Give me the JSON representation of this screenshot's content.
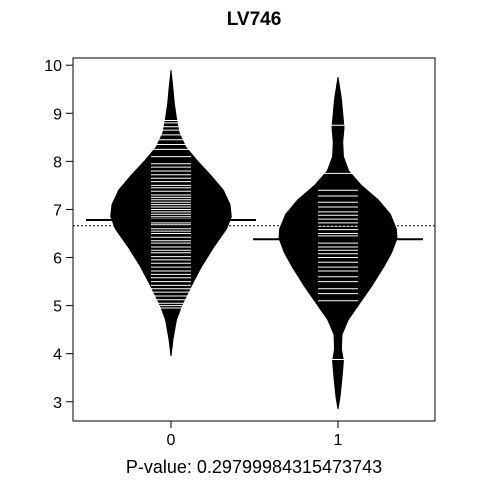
{
  "chart_data": {
    "type": "beanplot",
    "title": "LV746",
    "xlabel": "P-value: 0.29799984315473743",
    "ylabel": "",
    "categories": [
      "0",
      "1"
    ],
    "ylim": [
      2.6,
      10.15
    ],
    "y_ticks": [
      3,
      4,
      5,
      6,
      7,
      8,
      9,
      10
    ],
    "overall_mean": 6.66,
    "group_means": [
      6.78,
      6.38
    ],
    "colors": {
      "bean": "#000000",
      "lines": "#ffffff",
      "mean_line": "#000000"
    },
    "densities": [
      {
        "category": "0",
        "profile": [
          [
            3.95,
            0.0
          ],
          [
            4.3,
            0.03
          ],
          [
            4.7,
            0.08
          ],
          [
            5.0,
            0.16
          ],
          [
            5.4,
            0.3
          ],
          [
            5.8,
            0.45
          ],
          [
            6.2,
            0.63
          ],
          [
            6.6,
            0.83
          ],
          [
            6.85,
            0.9
          ],
          [
            7.1,
            0.88
          ],
          [
            7.4,
            0.78
          ],
          [
            7.7,
            0.6
          ],
          [
            8.0,
            0.4
          ],
          [
            8.3,
            0.22
          ],
          [
            8.6,
            0.12
          ],
          [
            8.9,
            0.08
          ],
          [
            9.2,
            0.05
          ],
          [
            9.5,
            0.03
          ],
          [
            9.9,
            0.0
          ]
        ],
        "observations": [
          4.95,
          5.0,
          5.05,
          5.12,
          5.2,
          5.28,
          5.35,
          5.42,
          5.5,
          5.58,
          5.65,
          5.72,
          5.8,
          5.88,
          5.95,
          6.02,
          6.1,
          6.15,
          6.22,
          6.3,
          6.35,
          6.42,
          6.5,
          6.55,
          6.6,
          6.68,
          6.72,
          6.8,
          6.85,
          6.9,
          6.95,
          7.0,
          7.05,
          7.1,
          7.15,
          7.2,
          7.25,
          7.3,
          7.38,
          7.45,
          7.5,
          7.58,
          7.65,
          7.72,
          7.8,
          7.88,
          7.95,
          8.1,
          8.25,
          8.35,
          8.45,
          8.55,
          8.65,
          8.72,
          8.8,
          8.85
        ]
      },
      {
        "category": "1",
        "profile": [
          [
            2.85,
            0.0
          ],
          [
            3.1,
            0.03
          ],
          [
            3.5,
            0.06
          ],
          [
            3.85,
            0.08
          ],
          [
            4.1,
            0.05
          ],
          [
            4.4,
            0.06
          ],
          [
            4.7,
            0.15
          ],
          [
            5.0,
            0.3
          ],
          [
            5.4,
            0.5
          ],
          [
            5.8,
            0.68
          ],
          [
            6.1,
            0.8
          ],
          [
            6.4,
            0.88
          ],
          [
            6.6,
            0.87
          ],
          [
            6.9,
            0.78
          ],
          [
            7.2,
            0.6
          ],
          [
            7.5,
            0.35
          ],
          [
            7.8,
            0.16
          ],
          [
            8.1,
            0.08
          ],
          [
            8.4,
            0.07
          ],
          [
            8.7,
            0.09
          ],
          [
            9.0,
            0.07
          ],
          [
            9.3,
            0.05
          ],
          [
            9.75,
            0.0
          ]
        ],
        "observations": [
          3.88,
          5.1,
          5.25,
          5.35,
          5.5,
          5.6,
          5.72,
          5.8,
          5.9,
          6.0,
          6.08,
          6.15,
          6.22,
          6.3,
          6.38,
          6.45,
          6.5,
          6.58,
          6.65,
          6.72,
          6.8,
          6.88,
          6.95,
          7.05,
          7.15,
          7.28,
          7.4,
          7.75,
          8.75
        ]
      }
    ]
  }
}
